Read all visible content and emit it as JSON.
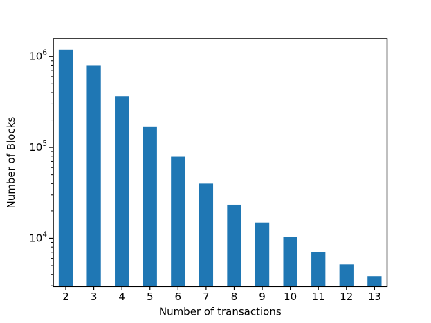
{
  "chart_data": {
    "type": "bar",
    "title": "",
    "xlabel": "Number of transactions",
    "ylabel": "Number of Blocks",
    "categories": [
      2,
      3,
      4,
      5,
      6,
      7,
      8,
      9,
      10,
      11,
      12,
      13
    ],
    "values": [
      1190000,
      800000,
      365000,
      170000,
      79000,
      40000,
      23400,
      14900,
      10300,
      7100,
      5150,
      3830
    ],
    "x_tick_labels": [
      "2",
      "3",
      "4",
      "5",
      "6",
      "7",
      "8",
      "9",
      "10",
      "11",
      "12",
      "13"
    ],
    "y_tick_values": [
      10000,
      100000,
      1000000
    ],
    "y_tick_labels": [
      "10^4",
      "10^5",
      "10^6"
    ],
    "y_minor_subs": [
      2,
      3,
      4,
      5,
      6,
      7,
      8,
      9
    ],
    "yscale": "log",
    "xlim": [
      1.556,
      13.447
    ],
    "ylim": [
      2940,
      1570000
    ],
    "bar_width": 0.5,
    "grid": false,
    "legend": null,
    "colors": {
      "bar": "#1f77b4",
      "axis": "#000000",
      "text": "#000000",
      "background": "#ffffff"
    }
  }
}
